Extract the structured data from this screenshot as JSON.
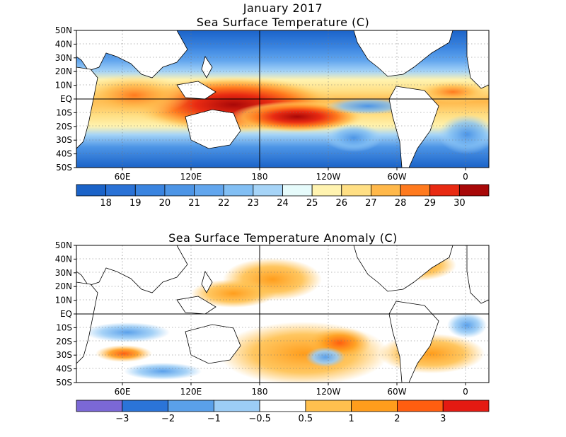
{
  "header": {
    "period": "January 2017",
    "panel1_title": "Sea Surface Temperature (C)",
    "panel2_title": "Sea Surface Temperature Anomaly (C)"
  },
  "map": {
    "lat_ticks": [
      "50N",
      "40N",
      "30N",
      "20N",
      "10N",
      "EQ",
      "10S",
      "20S",
      "30S",
      "40S",
      "50S"
    ],
    "lon_ticks": [
      "60E",
      "120E",
      "180",
      "120W",
      "60W",
      "0"
    ],
    "land_color": "#ffffff"
  },
  "sst_colorbar": {
    "labels": [
      "18",
      "19",
      "20",
      "21",
      "22",
      "23",
      "24",
      "25",
      "26",
      "27",
      "28",
      "29",
      "30"
    ],
    "colors": [
      "#1b63c8",
      "#2a72d6",
      "#3a84e0",
      "#4d95e6",
      "#62a6ee",
      "#82bff4",
      "#a6d4f7",
      "#e6fbfb",
      "#fff3b0",
      "#ffdf84",
      "#ffb84a",
      "#ff7a1e",
      "#e82a12",
      "#a80808"
    ]
  },
  "anom_colorbar": {
    "labels": [
      "−3",
      "−2",
      "−1",
      "−0.5",
      "0.5",
      "1",
      "2",
      "3"
    ],
    "colors": [
      "#7b68d6",
      "#2b74d8",
      "#5aa0ea",
      "#9ccdf6",
      "#ffffff",
      "#ffc04e",
      "#ff9d1c",
      "#ff5e10",
      "#e41a12"
    ]
  }
}
